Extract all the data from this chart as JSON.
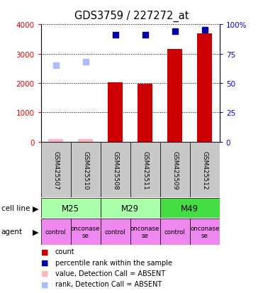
{
  "title": "GDS3759 / 227272_at",
  "samples": [
    "GSM425507",
    "GSM425510",
    "GSM425508",
    "GSM425511",
    "GSM425509",
    "GSM425512"
  ],
  "count_values": [
    80,
    90,
    2020,
    1980,
    3150,
    3700
  ],
  "count_absent": [
    true,
    true,
    false,
    false,
    false,
    false
  ],
  "percentile_values": [
    65,
    68,
    91,
    91,
    94,
    95
  ],
  "percentile_absent": [
    true,
    true,
    false,
    false,
    false,
    false
  ],
  "agents": [
    "control",
    "onconase\nse",
    "control",
    "onconase\nse",
    "control",
    "onconase\nse"
  ],
  "agent_color": "#EE88EE",
  "ylim_left": [
    0,
    4000
  ],
  "ylim_right": [
    0,
    100
  ],
  "yticks_left": [
    0,
    1000,
    2000,
    3000,
    4000
  ],
  "yticks_right": [
    0,
    25,
    50,
    75,
    100
  ],
  "ytick_labels_right": [
    "0",
    "25",
    "50",
    "75",
    "100%"
  ],
  "color_count": "#CC0000",
  "color_count_absent": "#FFB6C1",
  "color_percentile": "#0000AA",
  "color_percentile_absent": "#AABBFF",
  "bar_width": 0.5,
  "grid_color": "#000000",
  "sample_bg_color": "#C8C8C8",
  "cell_line_defs": [
    [
      "M25",
      0,
      2
    ],
    [
      "M29",
      2,
      4
    ],
    [
      "M49",
      4,
      6
    ]
  ],
  "cell_line_colors": [
    "#AAFFAA",
    "#AAFFAA",
    "#44DD44"
  ]
}
